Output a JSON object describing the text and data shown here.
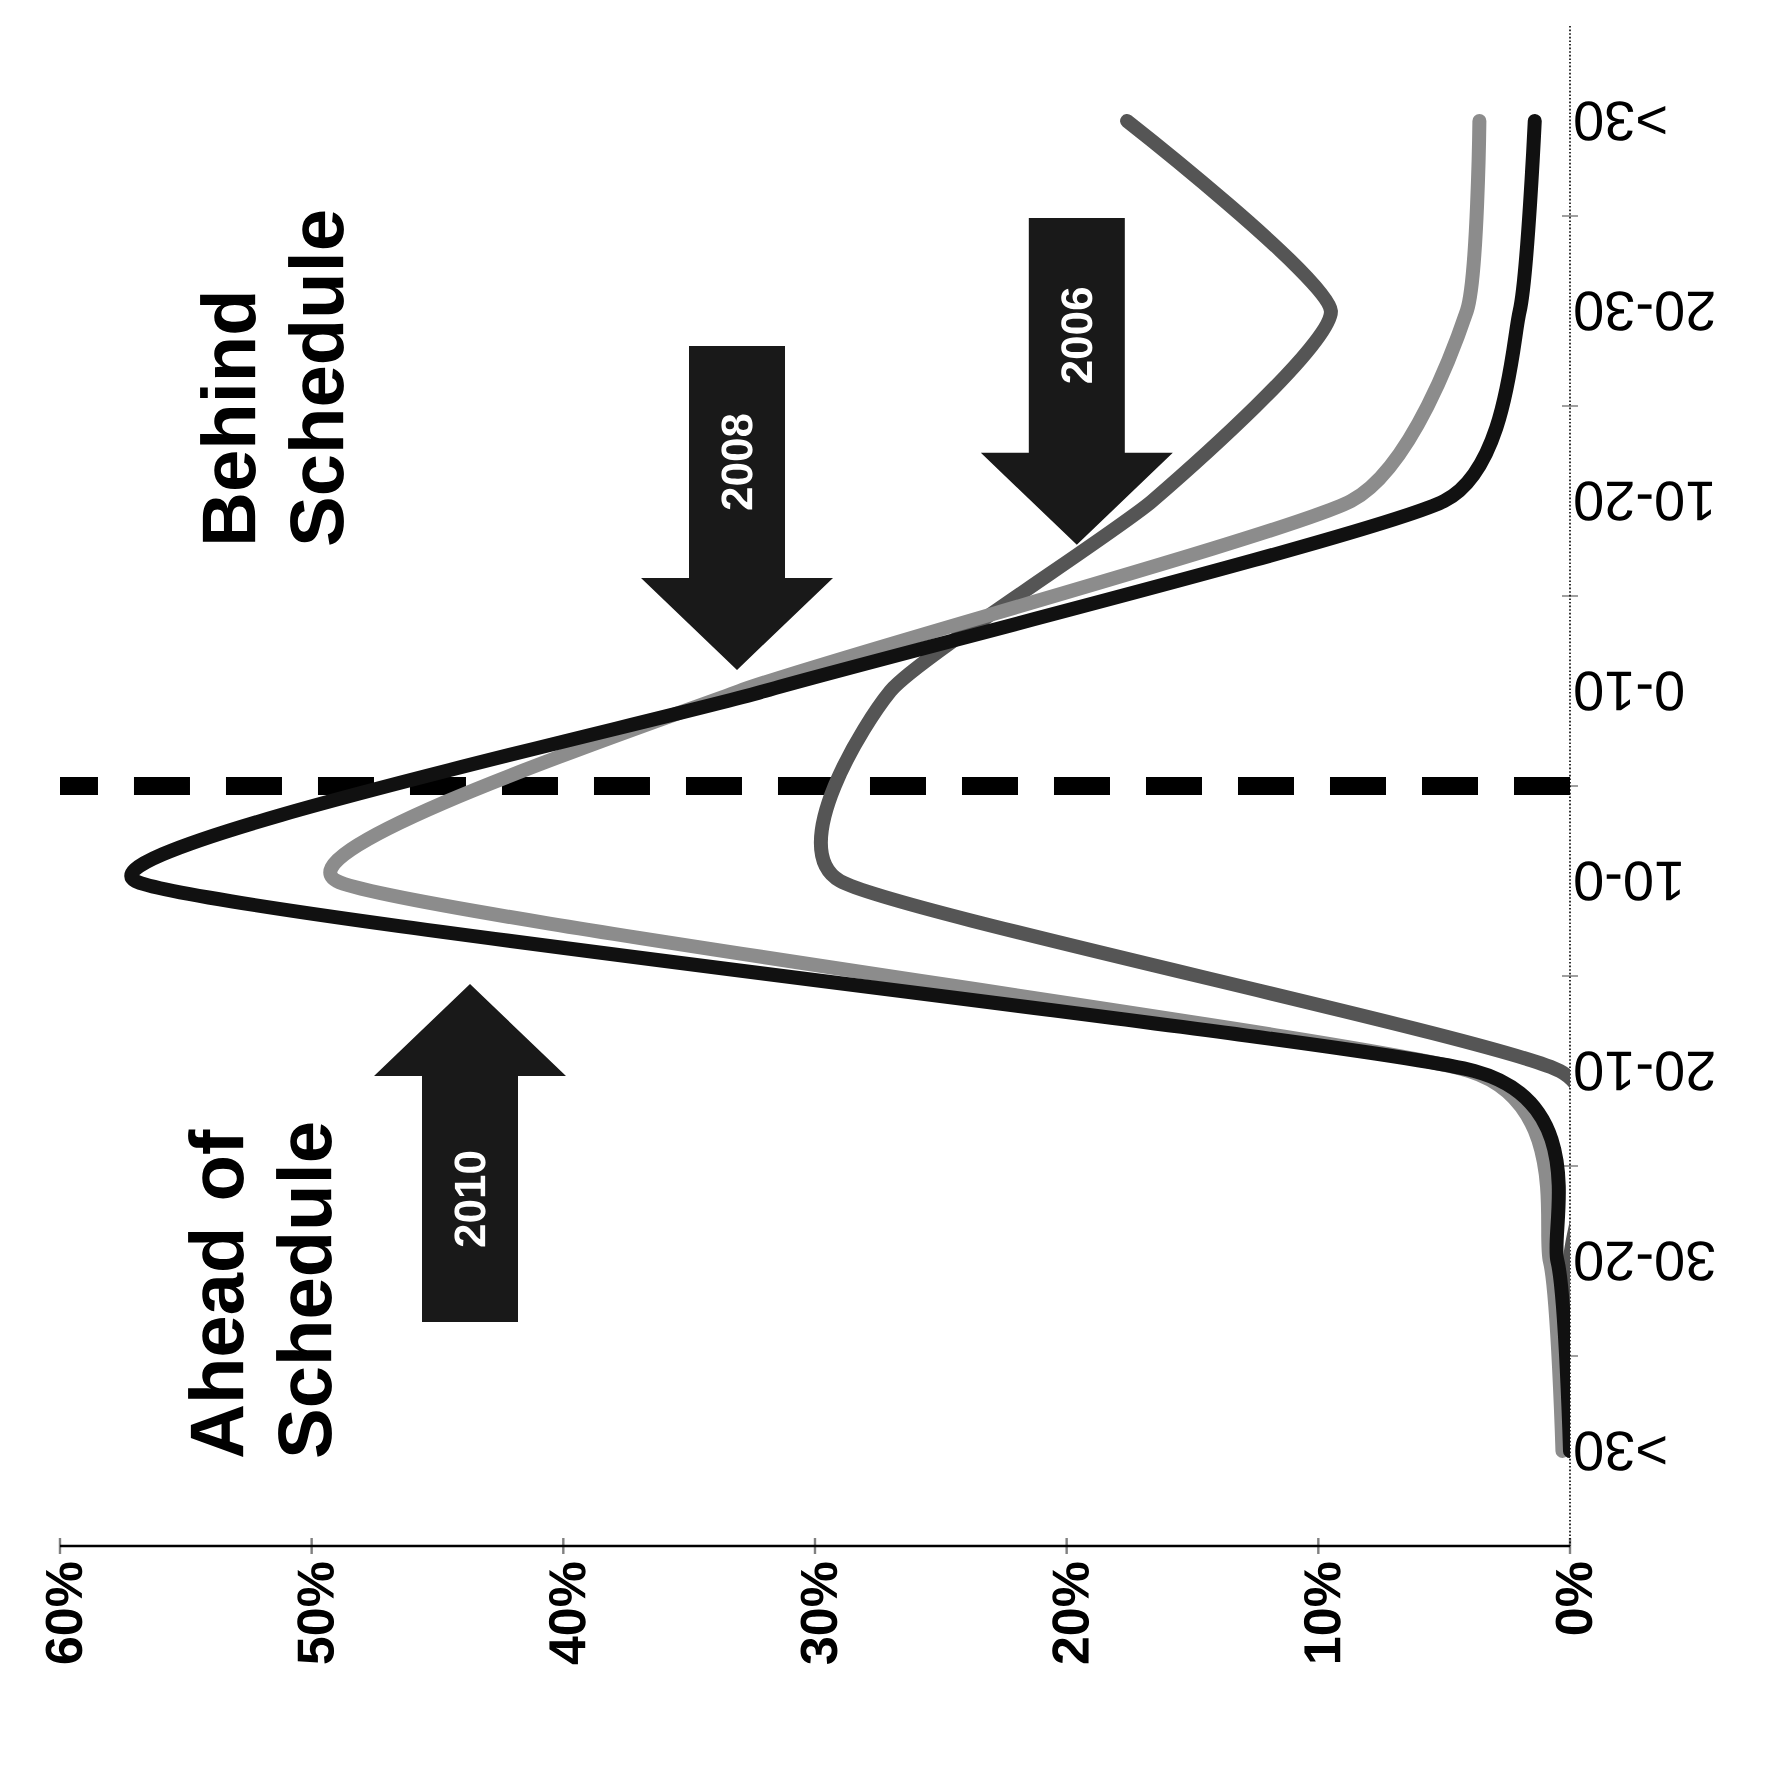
{
  "chart_data": {
    "type": "line",
    "orientation": "horizontal",
    "categories": [
      ">30",
      "20-30",
      "10-20",
      "0-10",
      "10-0",
      "20-10",
      "30-20",
      ">30"
    ],
    "series": [
      {
        "color": "#555555",
        "values": [
          17.6,
          9.5,
          16.6,
          27,
          29,
          0.4,
          0,
          0
        ]
      },
      {
        "color": "#8c8c8c",
        "values": [
          3.6,
          4.1,
          8.7,
          33,
          49,
          4,
          0.8,
          0.3
        ]
      },
      {
        "color": "#111111",
        "values": [
          1.4,
          2,
          5,
          32,
          57,
          3.8,
          0.5,
          0
        ]
      }
    ],
    "xlim": [
      60,
      0
    ],
    "xticks": [
      {
        "value": 0,
        "label": "0%"
      },
      {
        "value": 10,
        "label": "10%"
      },
      {
        "value": 20,
        "label": "20%"
      },
      {
        "value": 30,
        "label": "30%"
      },
      {
        "value": 40,
        "label": "40%"
      },
      {
        "value": 50,
        "label": "50%"
      },
      {
        "value": 60,
        "label": "60%"
      }
    ],
    "annotations": [
      "Ahead of Schedule",
      "Behind Schedule",
      "2006",
      "2008",
      "2010"
    ],
    "line_style": "solid"
  }
}
